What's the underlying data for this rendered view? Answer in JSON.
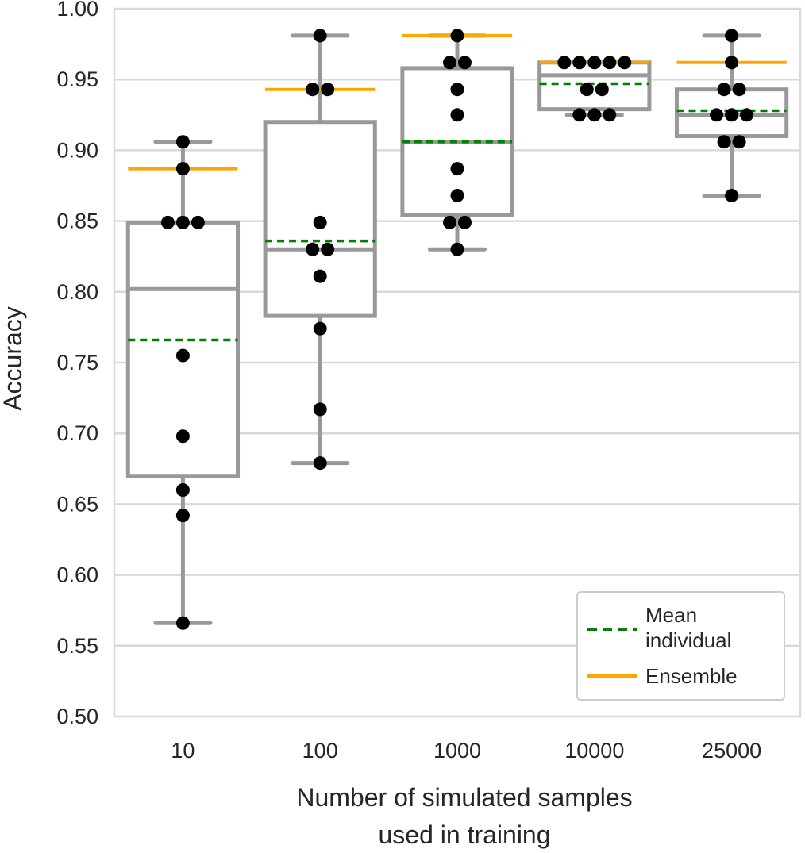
{
  "chart_data": {
    "type": "box",
    "ylabel": "Accuracy",
    "xlabel_lines": [
      "Number of simulated samples",
      "used in training"
    ],
    "ylim": [
      0.5,
      1.0
    ],
    "yticks": [
      0.5,
      0.55,
      0.6,
      0.65,
      0.7,
      0.75,
      0.8,
      0.85,
      0.9,
      0.95,
      1.0
    ],
    "ytick_labels": [
      "0.50",
      "0.55",
      "0.60",
      "0.65",
      "0.70",
      "0.75",
      "0.80",
      "0.85",
      "0.90",
      "0.95",
      "1.00"
    ],
    "grid": true,
    "legend_position": "bottom-right",
    "legend": [
      {
        "label_lines": [
          "Mean",
          "individual"
        ],
        "style": "dashed",
        "color": "#008000"
      },
      {
        "label_lines": [
          "Ensemble"
        ],
        "style": "solid",
        "color": "#FFA500"
      }
    ],
    "colors": {
      "box": "#999999",
      "grid": "#d9d9d9",
      "points": "#000000",
      "mean": "#008000",
      "ensemble": "#FFA500",
      "text": "#262626"
    },
    "categories": [
      "10",
      "100",
      "1000",
      "10000",
      "25000"
    ],
    "groups": [
      {
        "category": "10",
        "q1": 0.67,
        "median": 0.802,
        "q3": 0.849,
        "whisker_low": 0.566,
        "whisker_high": 0.906,
        "mean": 0.766,
        "ensemble": 0.887,
        "points": [
          0.906,
          0.887,
          0.849,
          0.849,
          0.849,
          0.755,
          0.698,
          0.66,
          0.642,
          0.566
        ]
      },
      {
        "category": "100",
        "q1": 0.783,
        "median": 0.83,
        "q3": 0.92,
        "whisker_low": 0.679,
        "whisker_high": 0.981,
        "mean": 0.836,
        "ensemble": 0.943,
        "points": [
          0.981,
          0.943,
          0.943,
          0.849,
          0.83,
          0.83,
          0.811,
          0.774,
          0.717,
          0.679
        ]
      },
      {
        "category": "1000",
        "q1": 0.854,
        "median": 0.906,
        "q3": 0.958,
        "whisker_low": 0.83,
        "whisker_high": 0.981,
        "mean": 0.906,
        "ensemble": 0.981,
        "points": [
          0.981,
          0.962,
          0.962,
          0.943,
          0.925,
          0.887,
          0.868,
          0.849,
          0.849,
          0.83
        ]
      },
      {
        "category": "10000",
        "q1": 0.929,
        "median": 0.953,
        "q3": 0.962,
        "whisker_low": 0.925,
        "whisker_high": 0.962,
        "mean": 0.947,
        "ensemble": 0.962,
        "points": [
          0.962,
          0.962,
          0.962,
          0.962,
          0.962,
          0.943,
          0.943,
          0.925,
          0.925,
          0.925
        ]
      },
      {
        "category": "25000",
        "q1": 0.91,
        "median": 0.925,
        "q3": 0.943,
        "whisker_low": 0.868,
        "whisker_high": 0.981,
        "mean": 0.928,
        "ensemble": 0.962,
        "points": [
          0.981,
          0.962,
          0.943,
          0.943,
          0.925,
          0.925,
          0.925,
          0.906,
          0.906,
          0.868
        ]
      }
    ]
  }
}
